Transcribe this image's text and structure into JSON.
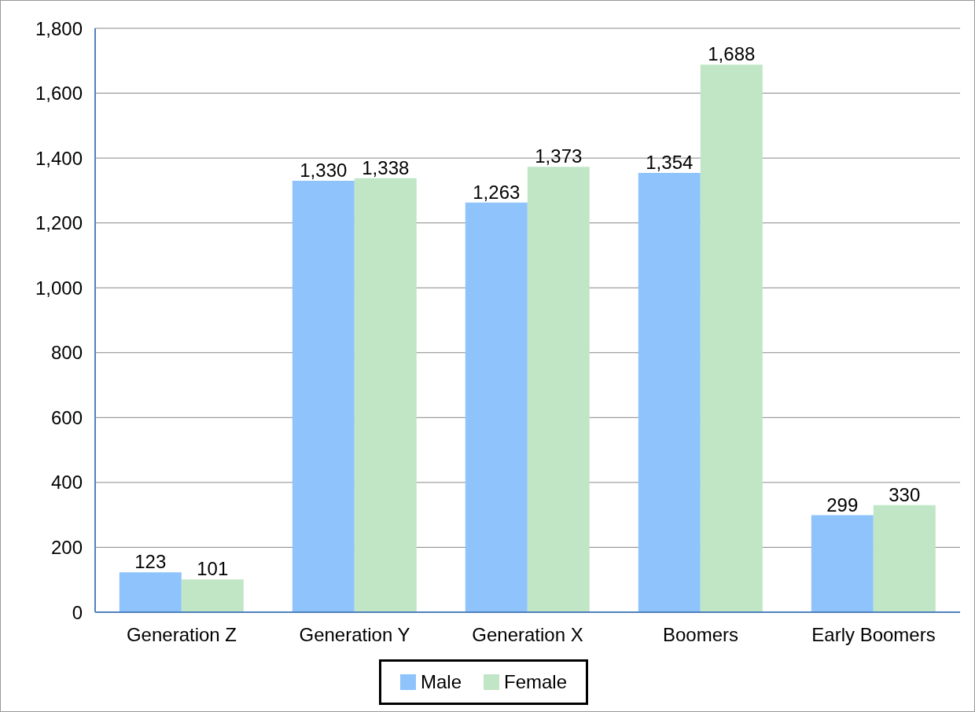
{
  "chart_data": {
    "type": "bar",
    "categories": [
      "Generation Z",
      "Generation Y",
      "Generation X",
      "Boomers",
      "Early Boomers"
    ],
    "series": [
      {
        "name": "Male",
        "color": "#8fc3fc",
        "values": [
          123,
          1330,
          1263,
          1354,
          299
        ],
        "value_labels": [
          "123",
          "1,330",
          "1,263",
          "1,354",
          "299"
        ]
      },
      {
        "name": "Female",
        "color": "#c0e6c6",
        "values": [
          101,
          1338,
          1373,
          1688,
          330
        ],
        "value_labels": [
          "101",
          "1,338",
          "1,373",
          "1,688",
          "330"
        ]
      }
    ],
    "ylim": [
      0,
      1800
    ],
    "yticks": [
      0,
      200,
      400,
      600,
      800,
      {
        "value": 1000,
        "label": "1,000"
      },
      {
        "value": 1200,
        "label": "1,200"
      },
      {
        "value": 1400,
        "label": "1,400"
      },
      {
        "value": 1600,
        "label": "1,600"
      },
      {
        "value": 1800,
        "label": "1,800"
      }
    ],
    "grid": "y",
    "legend": "bottom"
  }
}
